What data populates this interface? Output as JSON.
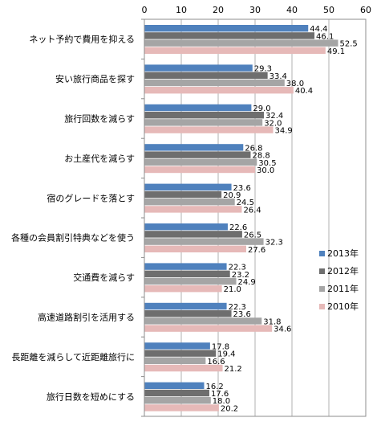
{
  "chart_data": {
    "type": "bar",
    "orientation": "horizontal",
    "title": "",
    "xlabel": "",
    "ylabel": "",
    "xlim": [
      0,
      60
    ],
    "ticks": [
      "0",
      "10",
      "20",
      "30",
      "40",
      "50",
      "60"
    ],
    "grid": true,
    "legend_position": "right",
    "categories": [
      "ネット予約で費用を抑える",
      "安い旅行商品を探す",
      "旅行回数を減らす",
      "お土産代を減らす",
      "宿のグレードを落とす",
      "各種の会員割引特典などを使う",
      "交通費を減らす",
      "高速道路割引を活用する",
      "長距離を減らして近距離旅行に",
      "旅行日数を短めにする"
    ],
    "series": [
      {
        "name": "2013年",
        "color": "#4f81bd",
        "values": [
          44.4,
          29.3,
          29.0,
          26.8,
          23.6,
          22.6,
          22.3,
          22.3,
          17.8,
          16.2
        ]
      },
      {
        "name": "2012年",
        "color": "#6e6e6e",
        "values": [
          46.1,
          33.4,
          32.4,
          28.8,
          20.9,
          26.5,
          23.2,
          23.6,
          19.4,
          17.6
        ]
      },
      {
        "name": "2011年",
        "color": "#a5a5a5",
        "values": [
          52.5,
          38.0,
          32.0,
          30.5,
          24.5,
          32.3,
          24.9,
          31.8,
          16.6,
          18.0
        ]
      },
      {
        "name": "2010年",
        "color": "#e6b9b8",
        "values": [
          49.1,
          40.4,
          34.9,
          30.0,
          26.4,
          27.6,
          21.0,
          34.6,
          21.2,
          20.2
        ]
      }
    ]
  }
}
